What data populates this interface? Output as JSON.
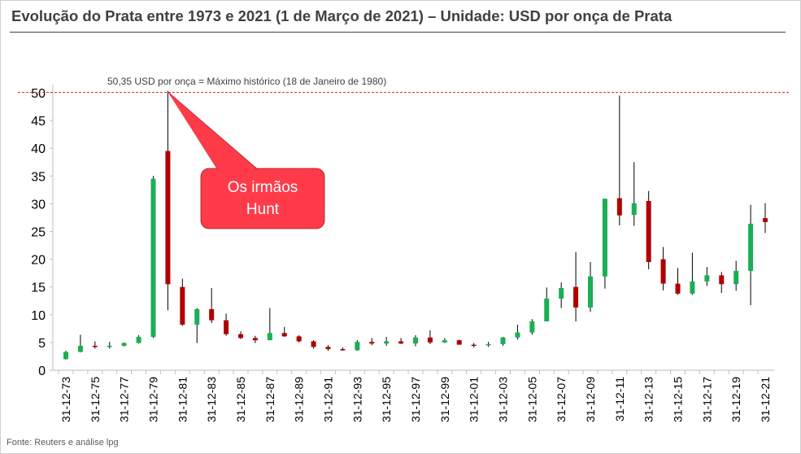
{
  "title": "Evolução do Prata entre 1973 e 2021 (1 de Março de 2021) – Unidade:  USD por onça de Prata",
  "source": "Fonte: Reuters e análise lpg",
  "colors": {
    "up": "#1aaf54",
    "down": "#b00000",
    "reference": "#e03030",
    "callout": "#ff3b4a"
  },
  "chart_data": {
    "type": "candlestick",
    "unit": "USD por onça de Prata",
    "ylim": [
      0,
      50
    ],
    "y_ticks": [
      "0",
      "5",
      "10",
      "15",
      "20",
      "25",
      "30",
      "35",
      "40",
      "45",
      "50"
    ],
    "x_tick_labels": [
      "31-12-73",
      "31-12-75",
      "31-12-77",
      "31-12-79",
      "31-12-81",
      "31-12-83",
      "31-12-85",
      "31-12-87",
      "31-12-89",
      "31-12-91",
      "31-12-93",
      "31-12-95",
      "31-12-97",
      "31-12-99",
      "31-12-01",
      "31-12-03",
      "31-12-05",
      "31-12-07",
      "31-12-09",
      "31-12-11",
      "31-12-13",
      "31-12-15",
      "31-12-17",
      "31-12-19",
      "31-12-21"
    ],
    "reference_line": {
      "value": 50.35,
      "label": "50,35 USD por onça = Máximo histórico (18 de Janeiro de 1980)"
    },
    "annotation": {
      "line1": "Os irmãos",
      "line2": "Hunt"
    },
    "candles": [
      {
        "year": 1973,
        "open": 2.0,
        "close": 3.3,
        "high": 3.5,
        "low": 1.9
      },
      {
        "year": 1974,
        "open": 3.3,
        "close": 4.4,
        "high": 6.4,
        "low": 3.2
      },
      {
        "year": 1975,
        "open": 4.4,
        "close": 4.2,
        "high": 5.2,
        "low": 3.9
      },
      {
        "year": 1976,
        "open": 4.2,
        "close": 4.4,
        "high": 5.1,
        "low": 3.9
      },
      {
        "year": 1977,
        "open": 4.4,
        "close": 4.9,
        "high": 5.0,
        "low": 4.3
      },
      {
        "year": 1978,
        "open": 4.9,
        "close": 6.0,
        "high": 6.3,
        "low": 4.8
      },
      {
        "year": 1979,
        "open": 6.0,
        "close": 34.5,
        "high": 35.0,
        "low": 5.8
      },
      {
        "year": 1980,
        "open": 39.5,
        "close": 15.5,
        "high": 50.35,
        "low": 10.8
      },
      {
        "year": 1981,
        "open": 15.0,
        "close": 8.2,
        "high": 16.5,
        "low": 8.0
      },
      {
        "year": 1982,
        "open": 8.2,
        "close": 11.0,
        "high": 11.2,
        "low": 4.9
      },
      {
        "year": 1983,
        "open": 11.0,
        "close": 9.0,
        "high": 14.8,
        "low": 8.5
      },
      {
        "year": 1984,
        "open": 9.0,
        "close": 6.5,
        "high": 10.2,
        "low": 6.2
      },
      {
        "year": 1985,
        "open": 6.5,
        "close": 5.8,
        "high": 7.0,
        "low": 5.6
      },
      {
        "year": 1986,
        "open": 5.8,
        "close": 5.4,
        "high": 6.2,
        "low": 4.9
      },
      {
        "year": 1987,
        "open": 5.4,
        "close": 6.7,
        "high": 11.2,
        "low": 5.4
      },
      {
        "year": 1988,
        "open": 6.7,
        "close": 6.1,
        "high": 7.8,
        "low": 6.0
      },
      {
        "year": 1989,
        "open": 6.1,
        "close": 5.2,
        "high": 6.3,
        "low": 5.0
      },
      {
        "year": 1990,
        "open": 5.2,
        "close": 4.2,
        "high": 5.4,
        "low": 3.9
      },
      {
        "year": 1991,
        "open": 4.2,
        "close": 3.8,
        "high": 4.5,
        "low": 3.5
      },
      {
        "year": 1992,
        "open": 3.8,
        "close": 3.6,
        "high": 4.1,
        "low": 3.5
      },
      {
        "year": 1993,
        "open": 3.6,
        "close": 5.1,
        "high": 5.4,
        "low": 3.5
      },
      {
        "year": 1994,
        "open": 5.1,
        "close": 4.8,
        "high": 5.8,
        "low": 4.5
      },
      {
        "year": 1995,
        "open": 4.8,
        "close": 5.2,
        "high": 6.0,
        "low": 4.4
      },
      {
        "year": 1996,
        "open": 5.2,
        "close": 4.8,
        "high": 5.8,
        "low": 4.7
      },
      {
        "year": 1997,
        "open": 4.8,
        "close": 5.9,
        "high": 6.3,
        "low": 4.3
      },
      {
        "year": 1998,
        "open": 5.9,
        "close": 5.0,
        "high": 7.2,
        "low": 4.7
      },
      {
        "year": 1999,
        "open": 5.0,
        "close": 5.4,
        "high": 5.8,
        "low": 4.9
      },
      {
        "year": 2000,
        "open": 5.4,
        "close": 4.6,
        "high": 5.5,
        "low": 4.6
      },
      {
        "year": 2001,
        "open": 4.6,
        "close": 4.5,
        "high": 4.9,
        "low": 4.1
      },
      {
        "year": 2002,
        "open": 4.5,
        "close": 4.7,
        "high": 5.1,
        "low": 4.2
      },
      {
        "year": 2003,
        "open": 4.7,
        "close": 5.9,
        "high": 6.0,
        "low": 4.4
      },
      {
        "year": 2004,
        "open": 5.9,
        "close": 6.8,
        "high": 8.2,
        "low": 5.5
      },
      {
        "year": 2005,
        "open": 6.8,
        "close": 8.8,
        "high": 9.2,
        "low": 6.4
      },
      {
        "year": 2006,
        "open": 8.8,
        "close": 12.9,
        "high": 14.9,
        "low": 8.8
      },
      {
        "year": 2007,
        "open": 12.9,
        "close": 14.8,
        "high": 15.8,
        "low": 11.2
      },
      {
        "year": 2008,
        "open": 15.0,
        "close": 11.3,
        "high": 21.3,
        "low": 8.8
      },
      {
        "year": 2009,
        "open": 11.3,
        "close": 16.9,
        "high": 19.5,
        "low": 10.5
      },
      {
        "year": 2010,
        "open": 16.9,
        "close": 30.9,
        "high": 30.9,
        "low": 14.7
      },
      {
        "year": 2011,
        "open": 31.0,
        "close": 27.9,
        "high": 49.5,
        "low": 26.1
      },
      {
        "year": 2012,
        "open": 28.0,
        "close": 30.1,
        "high": 37.5,
        "low": 26.0
      },
      {
        "year": 2013,
        "open": 30.5,
        "close": 19.5,
        "high": 32.3,
        "low": 18.2
      },
      {
        "year": 2014,
        "open": 20.0,
        "close": 15.6,
        "high": 22.2,
        "low": 14.4
      },
      {
        "year": 2015,
        "open": 15.6,
        "close": 13.8,
        "high": 18.4,
        "low": 13.6
      },
      {
        "year": 2016,
        "open": 13.8,
        "close": 16.0,
        "high": 21.2,
        "low": 13.6
      },
      {
        "year": 2017,
        "open": 16.0,
        "close": 17.1,
        "high": 18.6,
        "low": 15.2
      },
      {
        "year": 2018,
        "open": 17.1,
        "close": 15.5,
        "high": 17.7,
        "low": 13.9
      },
      {
        "year": 2019,
        "open": 15.5,
        "close": 17.9,
        "high": 19.7,
        "low": 14.3
      },
      {
        "year": 2020,
        "open": 17.9,
        "close": 26.4,
        "high": 29.8,
        "low": 11.7
      },
      {
        "year": 2021,
        "open": 27.4,
        "close": 26.7,
        "high": 30.1,
        "low": 24.7
      }
    ]
  }
}
